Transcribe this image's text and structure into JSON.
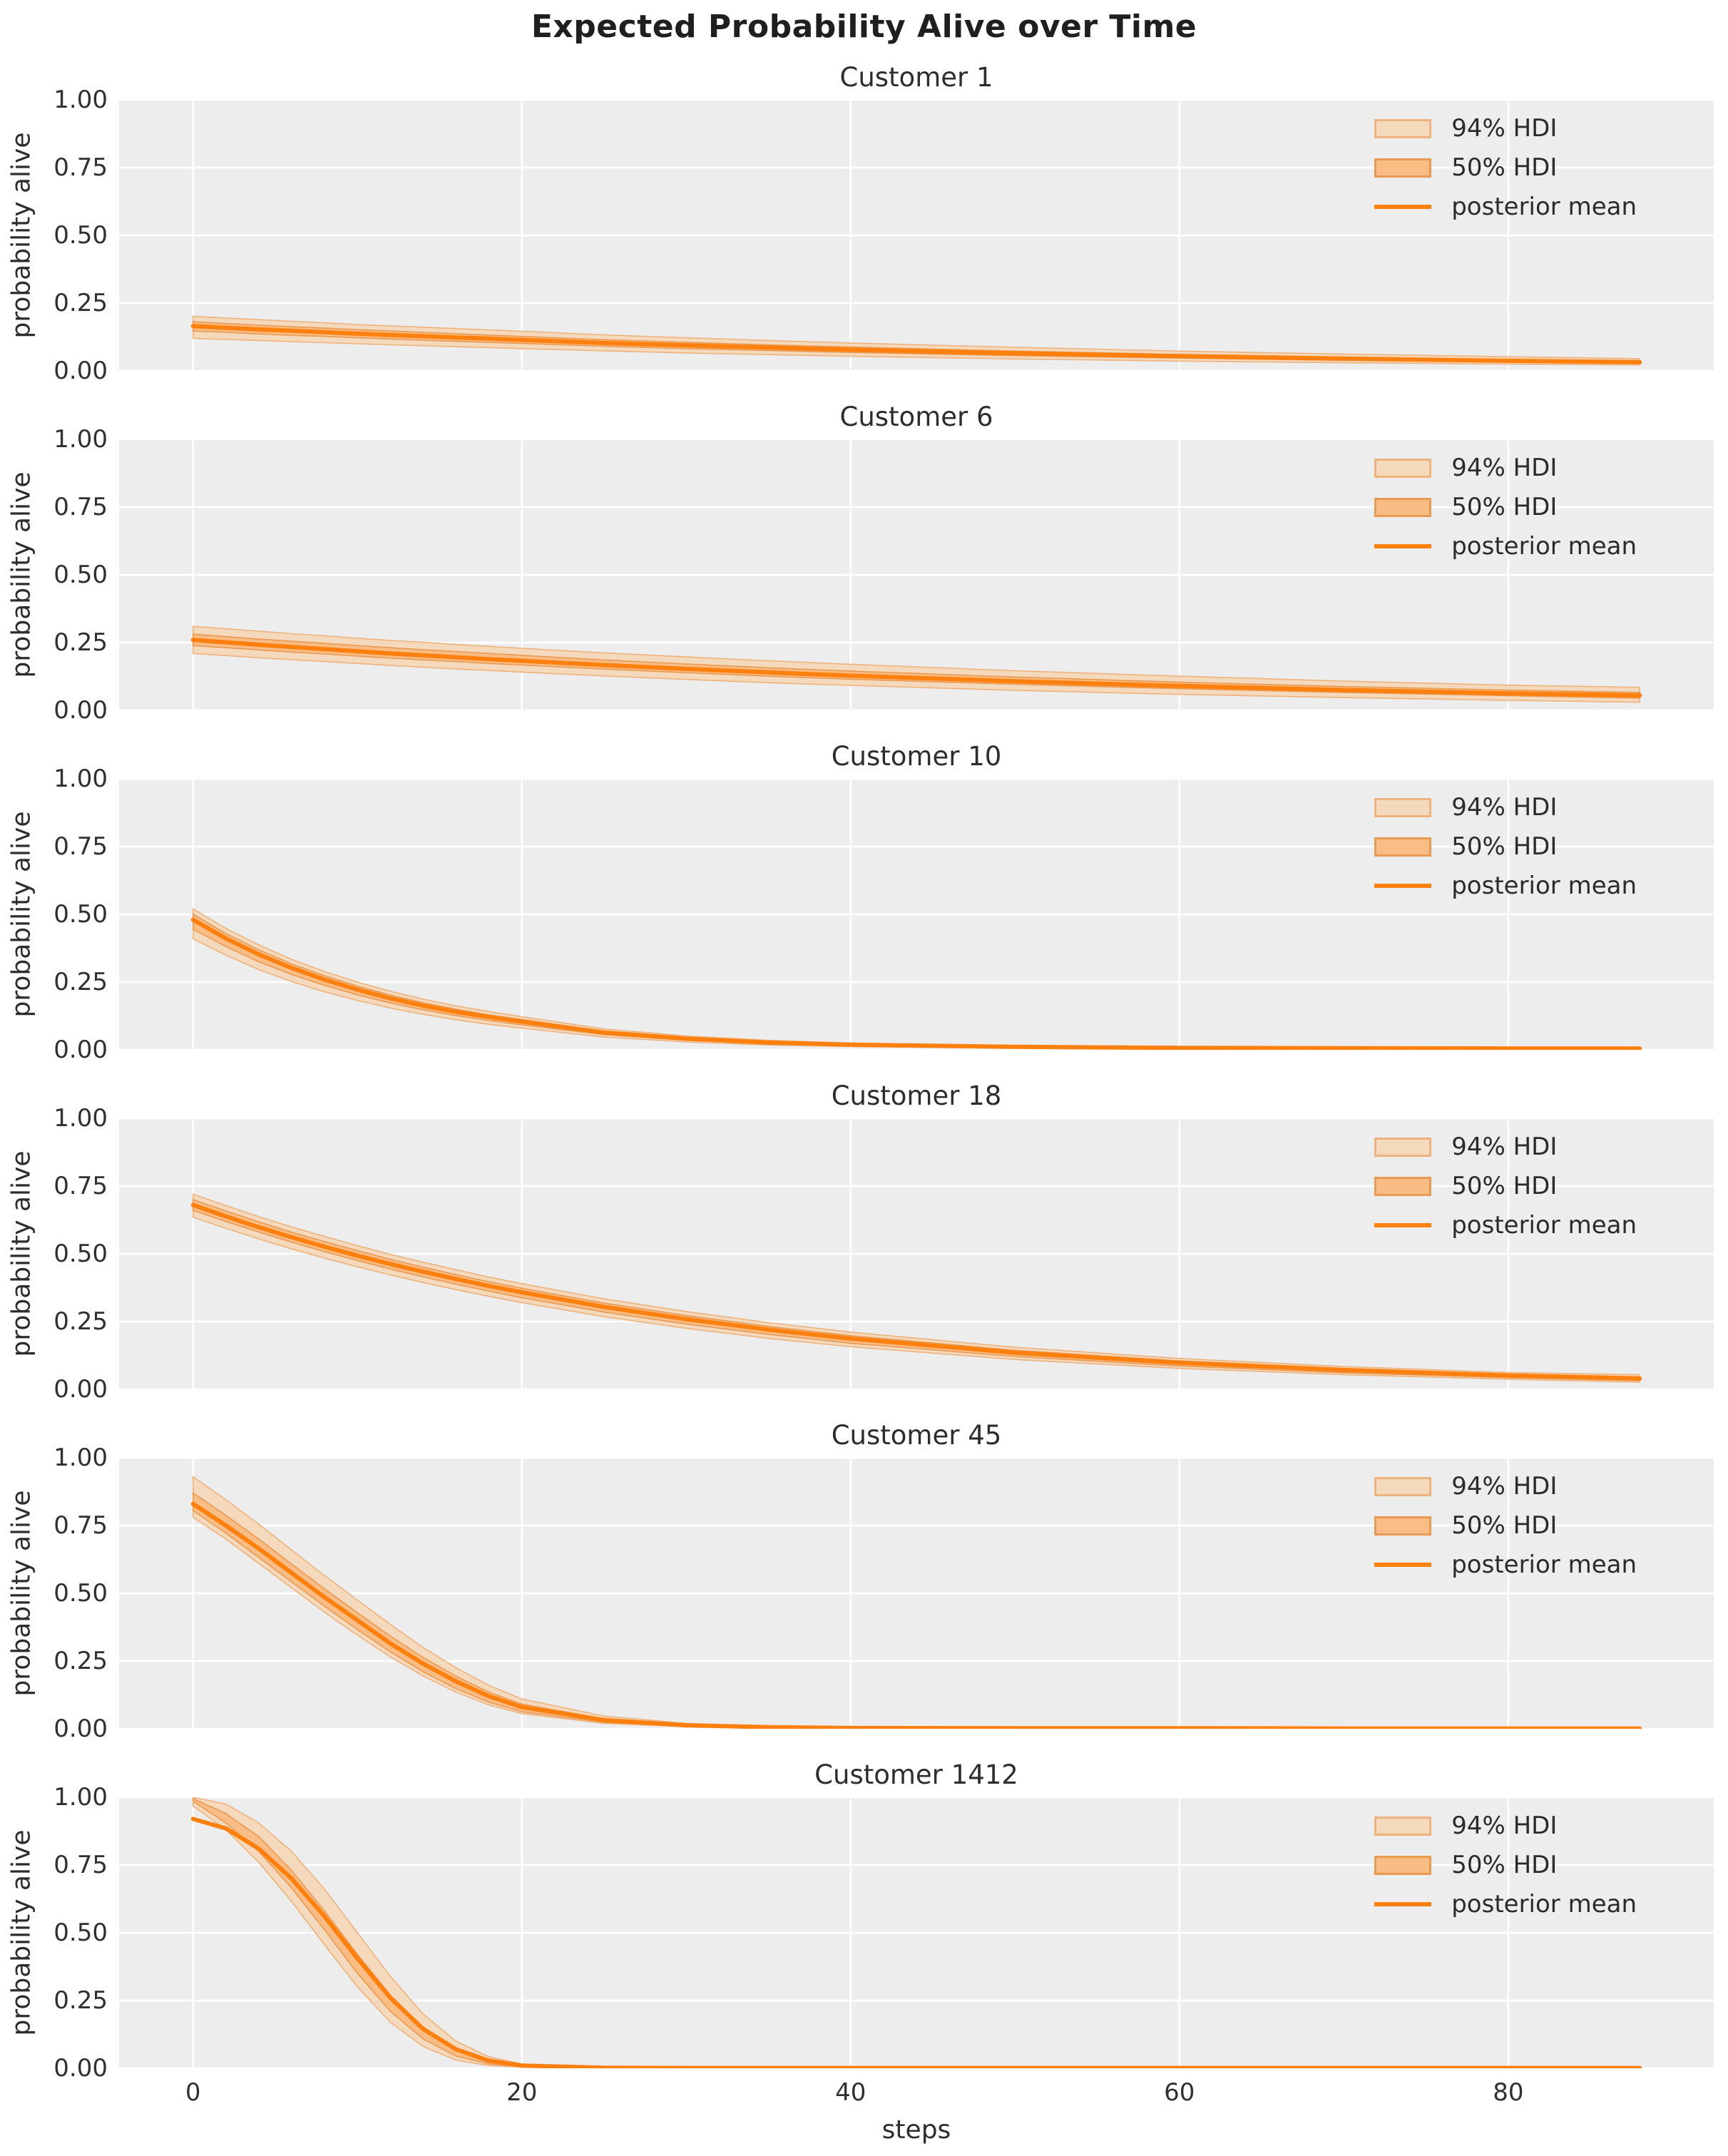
{
  "figure": {
    "title": "Expected Probability Alive over Time",
    "xlabel": "steps",
    "ylabel": "probability alive"
  },
  "axes": {
    "xlim": [
      -4.5,
      92.5
    ],
    "ylim": [
      0,
      1
    ],
    "x_ticks": [
      0,
      20,
      40,
      60,
      80
    ],
    "y_ticks": [
      {
        "label": "1.00",
        "value": 1.0
      },
      {
        "label": "0.75",
        "value": 0.75
      },
      {
        "label": "0.50",
        "value": 0.5
      },
      {
        "label": "0.25",
        "value": 0.25
      },
      {
        "label": "0.00",
        "value": 0.0
      }
    ],
    "grid": true
  },
  "legend": {
    "position": "upper right",
    "items": [
      {
        "label": "94% HDI",
        "type": "patch",
        "fill": "#f5d9bd",
        "edge": "#edb27d"
      },
      {
        "label": "50% HDI",
        "type": "patch",
        "fill": "#f8bc84",
        "edge": "#e99a52"
      },
      {
        "label": "posterior mean",
        "type": "line",
        "color": "#fd7f0e"
      }
    ]
  },
  "colors": {
    "plot_bg": "#ededed",
    "grid": "#ffffff",
    "mean_line": "#fd7f0e",
    "hdi94_fill": "#f5d9bd",
    "hdi94_edge": "#edb27d",
    "hdi50_fill": "#f8bc84",
    "hdi50_edge": "#e99a52",
    "text": "#262626"
  },
  "chart_data": [
    {
      "type": "line",
      "title": "Customer 1",
      "x": [
        0,
        2,
        4,
        6,
        8,
        10,
        12,
        14,
        16,
        18,
        20,
        25,
        30,
        35,
        40,
        50,
        60,
        70,
        80,
        88
      ],
      "mean": [
        0.165,
        0.159,
        0.153,
        0.148,
        0.143,
        0.137,
        0.132,
        0.128,
        0.123,
        0.119,
        0.114,
        0.103,
        0.094,
        0.086,
        0.078,
        0.065,
        0.054,
        0.045,
        0.037,
        0.032
      ],
      "hdi94_upper": [
        0.201,
        0.195,
        0.189,
        0.183,
        0.177,
        0.171,
        0.166,
        0.161,
        0.156,
        0.151,
        0.146,
        0.133,
        0.122,
        0.112,
        0.103,
        0.087,
        0.073,
        0.062,
        0.052,
        0.045
      ],
      "hdi94_lower": [
        0.12,
        0.116,
        0.112,
        0.108,
        0.104,
        0.1,
        0.096,
        0.093,
        0.089,
        0.086,
        0.082,
        0.074,
        0.066,
        0.06,
        0.054,
        0.044,
        0.036,
        0.03,
        0.025,
        0.022
      ],
      "hdi50_upper": [
        0.181,
        0.175,
        0.169,
        0.163,
        0.158,
        0.152,
        0.147,
        0.142,
        0.137,
        0.132,
        0.127,
        0.115,
        0.105,
        0.096,
        0.088,
        0.073,
        0.061,
        0.051,
        0.042,
        0.037
      ],
      "hdi50_lower": [
        0.147,
        0.142,
        0.136,
        0.131,
        0.127,
        0.122,
        0.117,
        0.113,
        0.109,
        0.105,
        0.101,
        0.091,
        0.082,
        0.075,
        0.068,
        0.056,
        0.047,
        0.039,
        0.032,
        0.028
      ]
    },
    {
      "type": "line",
      "title": "Customer 6",
      "x": [
        0,
        2,
        4,
        6,
        8,
        10,
        12,
        14,
        16,
        18,
        20,
        25,
        30,
        35,
        40,
        50,
        60,
        70,
        80,
        88
      ],
      "mean": [
        0.26,
        0.251,
        0.242,
        0.234,
        0.226,
        0.218,
        0.21,
        0.203,
        0.196,
        0.189,
        0.183,
        0.167,
        0.153,
        0.14,
        0.128,
        0.107,
        0.09,
        0.075,
        0.063,
        0.055
      ],
      "hdi94_upper": [
        0.31,
        0.301,
        0.292,
        0.283,
        0.275,
        0.266,
        0.258,
        0.251,
        0.243,
        0.236,
        0.229,
        0.212,
        0.197,
        0.183,
        0.17,
        0.146,
        0.126,
        0.108,
        0.093,
        0.085
      ],
      "hdi94_lower": [
        0.21,
        0.202,
        0.194,
        0.187,
        0.18,
        0.173,
        0.166,
        0.159,
        0.153,
        0.147,
        0.141,
        0.127,
        0.114,
        0.102,
        0.092,
        0.074,
        0.059,
        0.047,
        0.037,
        0.03
      ],
      "hdi50_upper": [
        0.281,
        0.272,
        0.263,
        0.255,
        0.247,
        0.239,
        0.231,
        0.224,
        0.217,
        0.21,
        0.203,
        0.186,
        0.171,
        0.157,
        0.145,
        0.123,
        0.104,
        0.088,
        0.075,
        0.066
      ],
      "hdi50_lower": [
        0.239,
        0.231,
        0.223,
        0.215,
        0.208,
        0.2,
        0.193,
        0.186,
        0.18,
        0.173,
        0.167,
        0.152,
        0.139,
        0.126,
        0.115,
        0.096,
        0.08,
        0.066,
        0.054,
        0.045
      ]
    },
    {
      "type": "line",
      "title": "Customer 10",
      "x": [
        0,
        2,
        4,
        6,
        8,
        10,
        12,
        14,
        16,
        18,
        20,
        25,
        30,
        35,
        40,
        50,
        60,
        70,
        80,
        88
      ],
      "mean": [
        0.48,
        0.411,
        0.352,
        0.302,
        0.259,
        0.222,
        0.19,
        0.163,
        0.14,
        0.121,
        0.104,
        0.064,
        0.041,
        0.027,
        0.019,
        0.011,
        0.007,
        0.006,
        0.005,
        0.005
      ],
      "hdi94_upper": [
        0.52,
        0.448,
        0.387,
        0.334,
        0.289,
        0.25,
        0.216,
        0.187,
        0.162,
        0.141,
        0.122,
        0.077,
        0.051,
        0.035,
        0.025,
        0.015,
        0.01,
        0.009,
        0.008,
        0.008
      ],
      "hdi94_lower": [
        0.41,
        0.349,
        0.296,
        0.252,
        0.214,
        0.182,
        0.154,
        0.131,
        0.111,
        0.094,
        0.08,
        0.047,
        0.029,
        0.018,
        0.012,
        0.006,
        0.004,
        0.003,
        0.003,
        0.003
      ],
      "hdi50_upper": [
        0.5,
        0.429,
        0.369,
        0.317,
        0.273,
        0.235,
        0.202,
        0.174,
        0.15,
        0.129,
        0.112,
        0.069,
        0.045,
        0.03,
        0.021,
        0.013,
        0.008,
        0.007,
        0.007,
        0.006
      ],
      "hdi50_lower": [
        0.445,
        0.381,
        0.325,
        0.278,
        0.238,
        0.203,
        0.173,
        0.148,
        0.126,
        0.108,
        0.092,
        0.056,
        0.035,
        0.023,
        0.015,
        0.008,
        0.005,
        0.004,
        0.004,
        0.004
      ]
    },
    {
      "type": "line",
      "title": "Customer 18",
      "x": [
        0,
        2,
        4,
        6,
        8,
        10,
        12,
        14,
        16,
        18,
        20,
        25,
        30,
        35,
        40,
        50,
        60,
        70,
        80,
        88
      ],
      "mean": [
        0.68,
        0.638,
        0.598,
        0.561,
        0.526,
        0.493,
        0.462,
        0.434,
        0.407,
        0.381,
        0.358,
        0.304,
        0.259,
        0.22,
        0.187,
        0.135,
        0.098,
        0.071,
        0.051,
        0.04
      ],
      "hdi94_upper": [
        0.72,
        0.678,
        0.637,
        0.599,
        0.564,
        0.53,
        0.498,
        0.469,
        0.441,
        0.414,
        0.39,
        0.334,
        0.287,
        0.246,
        0.211,
        0.155,
        0.114,
        0.084,
        0.062,
        0.054
      ],
      "hdi94_lower": [
        0.635,
        0.594,
        0.555,
        0.518,
        0.484,
        0.452,
        0.422,
        0.394,
        0.368,
        0.343,
        0.32,
        0.268,
        0.225,
        0.188,
        0.157,
        0.11,
        0.077,
        0.054,
        0.037,
        0.026
      ],
      "hdi50_upper": [
        0.7,
        0.658,
        0.618,
        0.58,
        0.545,
        0.512,
        0.48,
        0.451,
        0.423,
        0.397,
        0.373,
        0.318,
        0.272,
        0.232,
        0.198,
        0.144,
        0.105,
        0.077,
        0.056,
        0.046
      ],
      "hdi50_lower": [
        0.66,
        0.619,
        0.58,
        0.543,
        0.508,
        0.475,
        0.444,
        0.415,
        0.388,
        0.362,
        0.338,
        0.285,
        0.241,
        0.203,
        0.17,
        0.121,
        0.086,
        0.061,
        0.043,
        0.032
      ]
    },
    {
      "type": "line",
      "title": "Customer 45",
      "x": [
        0,
        2,
        4,
        6,
        8,
        10,
        12,
        14,
        16,
        18,
        20,
        25,
        30,
        35,
        40,
        50,
        60,
        70,
        80,
        88
      ],
      "mean": [
        0.83,
        0.75,
        0.665,
        0.575,
        0.485,
        0.4,
        0.315,
        0.24,
        0.175,
        0.12,
        0.08,
        0.032,
        0.013,
        0.006,
        0.003,
        0.002,
        0.002,
        0.001,
        0.001,
        0.001
      ],
      "hdi94_upper": [
        0.93,
        0.845,
        0.755,
        0.66,
        0.565,
        0.475,
        0.385,
        0.3,
        0.225,
        0.16,
        0.11,
        0.047,
        0.02,
        0.01,
        0.005,
        0.003,
        0.002,
        0.002,
        0.002,
        0.002
      ],
      "hdi94_lower": [
        0.78,
        0.7,
        0.61,
        0.52,
        0.43,
        0.345,
        0.265,
        0.195,
        0.135,
        0.088,
        0.056,
        0.02,
        0.008,
        0.003,
        0.002,
        0.001,
        0.001,
        0.001,
        0.001,
        0.001
      ],
      "hdi50_upper": [
        0.87,
        0.788,
        0.7,
        0.608,
        0.516,
        0.428,
        0.342,
        0.263,
        0.194,
        0.135,
        0.091,
        0.037,
        0.015,
        0.007,
        0.004,
        0.002,
        0.002,
        0.001,
        0.001,
        0.001
      ],
      "hdi50_lower": [
        0.805,
        0.722,
        0.632,
        0.542,
        0.452,
        0.366,
        0.284,
        0.21,
        0.148,
        0.098,
        0.063,
        0.024,
        0.009,
        0.004,
        0.002,
        0.001,
        0.001,
        0.001,
        0.001,
        0.001
      ]
    },
    {
      "type": "line",
      "title": "Customer 1412",
      "x": [
        0,
        2,
        4,
        6,
        8,
        10,
        12,
        14,
        16,
        18,
        20,
        25,
        30,
        35,
        40,
        50,
        60,
        70,
        80,
        88
      ],
      "mean": [
        0.92,
        0.885,
        0.81,
        0.7,
        0.56,
        0.405,
        0.26,
        0.145,
        0.07,
        0.028,
        0.01,
        0.002,
        0.001,
        0.001,
        0.001,
        0.001,
        0.001,
        0.001,
        0.001,
        0.001
      ],
      "hdi94_upper": [
        1.0,
        0.975,
        0.905,
        0.8,
        0.66,
        0.5,
        0.34,
        0.2,
        0.1,
        0.042,
        0.016,
        0.003,
        0.002,
        0.002,
        0.001,
        0.001,
        0.001,
        0.001,
        0.001,
        0.001
      ],
      "hdi94_lower": [
        0.968,
        0.88,
        0.76,
        0.615,
        0.455,
        0.3,
        0.17,
        0.08,
        0.03,
        0.01,
        0.004,
        0.001,
        0.001,
        0.0,
        0.0,
        0.0,
        0.0,
        0.0,
        0.0,
        0.0
      ],
      "hdi50_upper": [
        0.995,
        0.94,
        0.855,
        0.73,
        0.58,
        0.42,
        0.27,
        0.15,
        0.068,
        0.026,
        0.009,
        0.002,
        0.001,
        0.001,
        0.001,
        0.001,
        0.001,
        0.001,
        0.001,
        0.001
      ],
      "hdi50_lower": [
        0.985,
        0.905,
        0.8,
        0.665,
        0.51,
        0.35,
        0.21,
        0.108,
        0.045,
        0.016,
        0.006,
        0.001,
        0.001,
        0.0,
        0.0,
        0.0,
        0.0,
        0.0,
        0.0,
        0.0
      ]
    }
  ]
}
